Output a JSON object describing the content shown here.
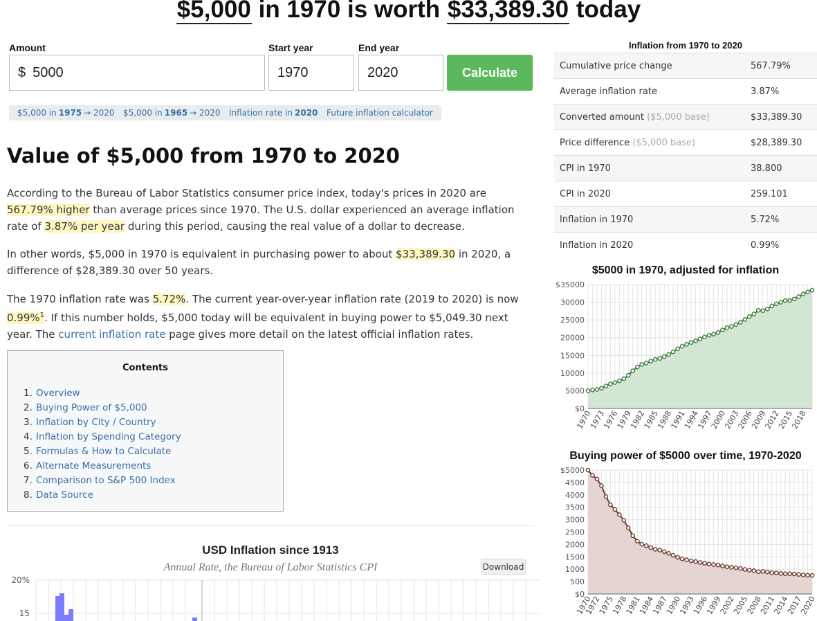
{
  "headline": {
    "amount": "$5,000",
    "mid1": "in 1970 is worth",
    "result": "$33,389.30",
    "mid2": "today"
  },
  "form": {
    "amount_label": "Amount",
    "currency_symbol": "$",
    "amount_value": "5000",
    "start_label": "Start year",
    "start_value": "1970",
    "end_label": "End year",
    "end_value": "2020",
    "calculate_label": "Calculate"
  },
  "quick_links": [
    {
      "pre": "$5,000 in",
      "bold": "1975",
      "post": "→ 2020"
    },
    {
      "pre": "$5,000 in",
      "bold": "1965",
      "post": "→ 2020"
    },
    {
      "pre": "Inflation rate in",
      "bold": "2020",
      "post": ""
    },
    {
      "pre": "Future inflation calculator",
      "bold": "",
      "post": ""
    }
  ],
  "section_title": "Value of $5,000 from 1970 to 2020",
  "p1": {
    "a": "According to the Bureau of Labor Statistics consumer price index, today's prices in 2020 are",
    "h1": "567.79% higher",
    "b": "than average prices since 1970. The U.S. dollar experienced an average inflation rate of",
    "h2": "3.87% per year",
    "c": "during this period, causing the real value of a dollar to decrease."
  },
  "p2": {
    "a": "In other words, $5,000 in 1970 is equivalent in purchasing power to about",
    "h1": "$33,389.30",
    "b": "in 2020, a difference of $28,389.30 over 50 years."
  },
  "p3": {
    "a": "The 1970 inflation rate was",
    "h1": "5.72%",
    "b": ". The current year-over-year inflation rate (2019 to 2020) is now",
    "h2": "0.99%",
    "sup": "1",
    "c": ". If this number holds, $5,000 today will be equivalent in buying power to $5,049.30 next year. The",
    "link": "current inflation rate",
    "d": "page gives more detail on the latest official inflation rates."
  },
  "toc": {
    "title": "Contents",
    "items": [
      {
        "n": "1.",
        "t": "Overview"
      },
      {
        "n": "2.",
        "t": "Buying Power of $5,000"
      },
      {
        "n": "3.",
        "t": "Inflation by City / Country"
      },
      {
        "n": "4.",
        "t": "Inflation by Spending Category"
      },
      {
        "n": "5.",
        "t": "Formulas & How to Calculate"
      },
      {
        "n": "6.",
        "t": "Alternate Measurements"
      },
      {
        "n": "7.",
        "t": "Comparison to S&P 500 Index"
      },
      {
        "n": "8.",
        "t": "Data Source"
      }
    ]
  },
  "usd_chart": {
    "title": "USD Inflation since 1913",
    "subtitle": "Annual Rate, the Bureau of Labor Statistics CPI",
    "download_label": "Download",
    "y_ticks": [
      "20%",
      "15"
    ],
    "bar_color": "#7b7bff"
  },
  "summary_table": {
    "title": "Inflation from 1970 to 2020",
    "rows": [
      {
        "label": "Cumulative price change",
        "note": "",
        "value": "567.79%"
      },
      {
        "label": "Average inflation rate",
        "note": "",
        "value": "3.87%"
      },
      {
        "label": "Converted amount",
        "note": "($5,000 base)",
        "value": "$33,389.30"
      },
      {
        "label": "Price difference",
        "note": "($5,000 base)",
        "value": "$28,389.30"
      },
      {
        "label": "CPI in 1970",
        "note": "",
        "value": "38.800"
      },
      {
        "label": "CPI in 2020",
        "note": "",
        "value": "259.101"
      },
      {
        "label": "Inflation in 1970",
        "note": "",
        "value": "5.72%"
      },
      {
        "label": "Inflation in 2020",
        "note": "",
        "value": "0.99%"
      }
    ]
  },
  "chart_data": [
    {
      "type": "area",
      "title": "$5000 in 1970, adjusted for inflation",
      "y_tick_labels": [
        "$0",
        "5000",
        "10000",
        "15000",
        "20000",
        "25000",
        "30000",
        "$35000"
      ],
      "ylim": [
        0,
        35000
      ],
      "x_tick_labels": [
        "1970",
        "1973",
        "1976",
        "1979",
        "1982",
        "1985",
        "1988",
        "1991",
        "1994",
        "1997",
        "2000",
        "2003",
        "2006",
        "2009",
        "2012",
        "2015",
        "2018"
      ],
      "x": [
        1970,
        1971,
        1972,
        1973,
        1974,
        1975,
        1976,
        1977,
        1978,
        1979,
        1980,
        1981,
        1982,
        1983,
        1984,
        1985,
        1986,
        1987,
        1988,
        1989,
        1990,
        1991,
        1992,
        1993,
        1994,
        1995,
        1996,
        1997,
        1998,
        1999,
        2000,
        2001,
        2002,
        2003,
        2004,
        2005,
        2006,
        2007,
        2008,
        2009,
        2010,
        2011,
        2012,
        2013,
        2014,
        2015,
        2016,
        2017,
        2018,
        2019,
        2020
      ],
      "values": [
        5000,
        5220,
        5390,
        5720,
        6360,
        6940,
        7330,
        7810,
        8410,
        9360,
        10620,
        11720,
        12440,
        12840,
        13390,
        13870,
        14130,
        14650,
        15250,
        15990,
        16850,
        17560,
        18090,
        18630,
        19110,
        19650,
        20200,
        20670,
        20990,
        21450,
        22170,
        22800,
        23160,
        23690,
        24320,
        25140,
        25950,
        26690,
        27720,
        27620,
        28070,
        28960,
        29560,
        30000,
        30480,
        30510,
        30900,
        31560,
        32330,
        32910,
        33390
      ],
      "line_color": "#3d7a3d",
      "fill_color": "#d3e6d3",
      "grid": true
    },
    {
      "type": "area",
      "title": "Buying power of $5000 over time, 1970-2020",
      "y_tick_labels": [
        "$0",
        "500",
        "1000",
        "1500",
        "2000",
        "2500",
        "3000",
        "3500",
        "4000",
        "4500",
        "$5000"
      ],
      "ylim": [
        0,
        5000
      ],
      "x_tick_labels": [
        "1970",
        "1972",
        "1975",
        "1978",
        "1981",
        "1984",
        "1987",
        "1990",
        "1993",
        "1996",
        "1999",
        "2002",
        "2005",
        "2008",
        "2011",
        "2014",
        "2017",
        "2020"
      ],
      "x": [
        1970,
        1971,
        1972,
        1973,
        1974,
        1975,
        1976,
        1977,
        1978,
        1979,
        1980,
        1981,
        1982,
        1983,
        1984,
        1985,
        1986,
        1987,
        1988,
        1989,
        1990,
        1991,
        1992,
        1993,
        1994,
        1995,
        1996,
        1997,
        1998,
        1999,
        2000,
        2001,
        2002,
        2003,
        2004,
        2005,
        2006,
        2007,
        2008,
        2009,
        2010,
        2011,
        2012,
        2013,
        2014,
        2015,
        2016,
        2017,
        2018,
        2019,
        2020
      ],
      "values": [
        5000,
        4790,
        4640,
        4370,
        3930,
        3600,
        3410,
        3200,
        2970,
        2670,
        2350,
        2130,
        2010,
        1950,
        1870,
        1800,
        1770,
        1710,
        1640,
        1560,
        1480,
        1420,
        1380,
        1340,
        1310,
        1270,
        1240,
        1210,
        1190,
        1170,
        1130,
        1100,
        1080,
        1060,
        1030,
        990,
        960,
        940,
        900,
        910,
        890,
        860,
        850,
        830,
        820,
        820,
        810,
        790,
        770,
        760,
        750
      ],
      "line_color": "#6b3a2e",
      "fill_color": "#e4d5d3",
      "grid": true
    }
  ]
}
